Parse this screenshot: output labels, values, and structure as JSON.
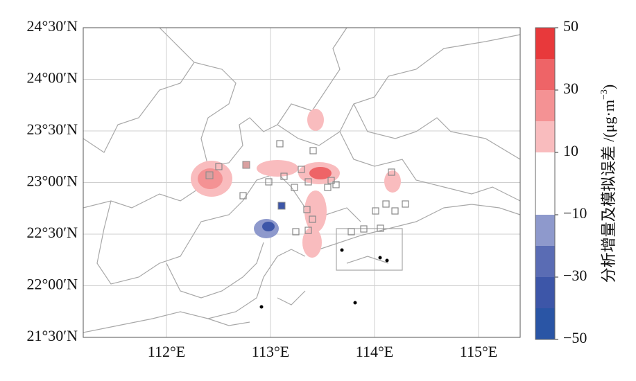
{
  "map": {
    "lonlim": [
      111.2,
      115.4
    ],
    "latlim": [
      21.5,
      24.5
    ],
    "lonticks": [
      {
        "value": 112,
        "label": "112°E"
      },
      {
        "value": 113,
        "label": "113°E"
      },
      {
        "value": 114,
        "label": "114°E"
      },
      {
        "value": 115,
        "label": "115°E"
      }
    ],
    "latticks": [
      {
        "value": 21.5,
        "label": "21°30′N"
      },
      {
        "value": 22,
        "label": "22°00′N"
      },
      {
        "value": 22.5,
        "label": "22°30′N"
      },
      {
        "value": 23,
        "label": "23°00′N"
      },
      {
        "value": 23.5,
        "label": "23°30′N"
      },
      {
        "value": 24,
        "label": "24°00′N"
      },
      {
        "value": 24.5,
        "label": "24°30′N"
      }
    ],
    "grid": true
  },
  "colorbar": {
    "label": "分析增量及模拟误差 /(μg·m",
    "label_sup": "−3",
    "label_end": ")",
    "lim": [
      -50,
      50
    ],
    "levels": [
      -50,
      -40,
      -30,
      -20,
      -10,
      10,
      20,
      30,
      40,
      50
    ],
    "colors": [
      "#2a55a5",
      "#3d56a8",
      "#5a6cb4",
      "#8e99cc",
      "#ffffff",
      "#f9bcbe",
      "#f49294",
      "#ee6467",
      "#e8393b"
    ],
    "ticks": [
      {
        "value": -50,
        "label": "−50"
      },
      {
        "value": -30,
        "label": "−30"
      },
      {
        "value": -10,
        "label": "−10"
      },
      10,
      30,
      50
    ]
  }
}
